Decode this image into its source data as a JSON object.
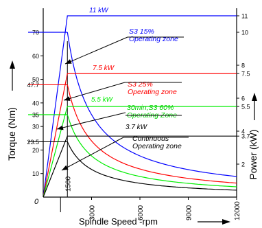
{
  "chart_data": {
    "type": "line",
    "title": "",
    "xlabel": "Spindle Speed -rpm",
    "ylabel_left": "Torque (Nm)",
    "ylabel_right": "Power (kW)",
    "xlim": [
      0,
      12000
    ],
    "ylim_torque": [
      0,
      85
    ],
    "ylim_power": [
      0,
      11.5
    ],
    "origin_label": "0",
    "x_ticks": [
      {
        "value": 3000,
        "label": "3000"
      },
      {
        "value": 6000,
        "label": "6000"
      },
      {
        "value": 9000,
        "label": "9000"
      },
      {
        "value": 12000,
        "label": "12000"
      }
    ],
    "base_speed": {
      "value": 1500,
      "label": "1500"
    },
    "y_left_ticks": [
      {
        "value": 10,
        "label": "10"
      },
      {
        "value": 20,
        "label": "20"
      },
      {
        "value": 23.5,
        "label": "23.5"
      },
      {
        "value": 30,
        "label": "30"
      },
      {
        "value": 35,
        "label": "35"
      },
      {
        "value": 40,
        "label": "40"
      },
      {
        "value": 47.7,
        "label": "47.7"
      },
      {
        "value": 50,
        "label": "50"
      },
      {
        "value": 60,
        "label": "60"
      },
      {
        "value": 70,
        "label": "70"
      }
    ],
    "y_right_ticks": [
      {
        "value": 2,
        "label": "2"
      },
      {
        "value": 3.7,
        "label": "3.7"
      },
      {
        "value": 4,
        "label": "4"
      },
      {
        "value": 5.5,
        "label": "5.5"
      },
      {
        "value": 6,
        "label": "6"
      },
      {
        "value": 7.5,
        "label": "7.5"
      },
      {
        "value": 8,
        "label": "8"
      },
      {
        "value": 10,
        "label": "10"
      },
      {
        "value": 11,
        "label": "11"
      }
    ],
    "series": [
      {
        "name": "S3 15% Operating zone",
        "power_label": "11 kW",
        "power_kw": 11,
        "torque_nm": 70,
        "color": "#0000ff"
      },
      {
        "name": "S3 25% Operating zone",
        "power_label": "7.5 kW",
        "power_kw": 7.5,
        "torque_nm": 47.7,
        "color": "#ff0000"
      },
      {
        "name": "30min,S3 60% Operating Zone",
        "power_label": "5.5 kW",
        "power_kw": 5.5,
        "torque_nm": 35,
        "color": "#00ee00"
      },
      {
        "name": "Continuous Operating zone",
        "power_label": "3.7 kW",
        "power_kw": 3.7,
        "torque_nm": 23.5,
        "color": "#000000"
      }
    ],
    "zone_labels": [
      {
        "line1": "S3  15%",
        "line2": "Operating  zone",
        "color": "#0000ff"
      },
      {
        "line1": "S3  25%",
        "line2": "Operating  zone",
        "color": "#ff0000"
      },
      {
        "line1": "30min,S3  60%",
        "line2": "Operating  Zone",
        "color": "#00cc00"
      },
      {
        "line1": "Continuous",
        "line2": "Operating  zone",
        "color": "#000000"
      }
    ],
    "grid": false,
    "legend": "none"
  }
}
